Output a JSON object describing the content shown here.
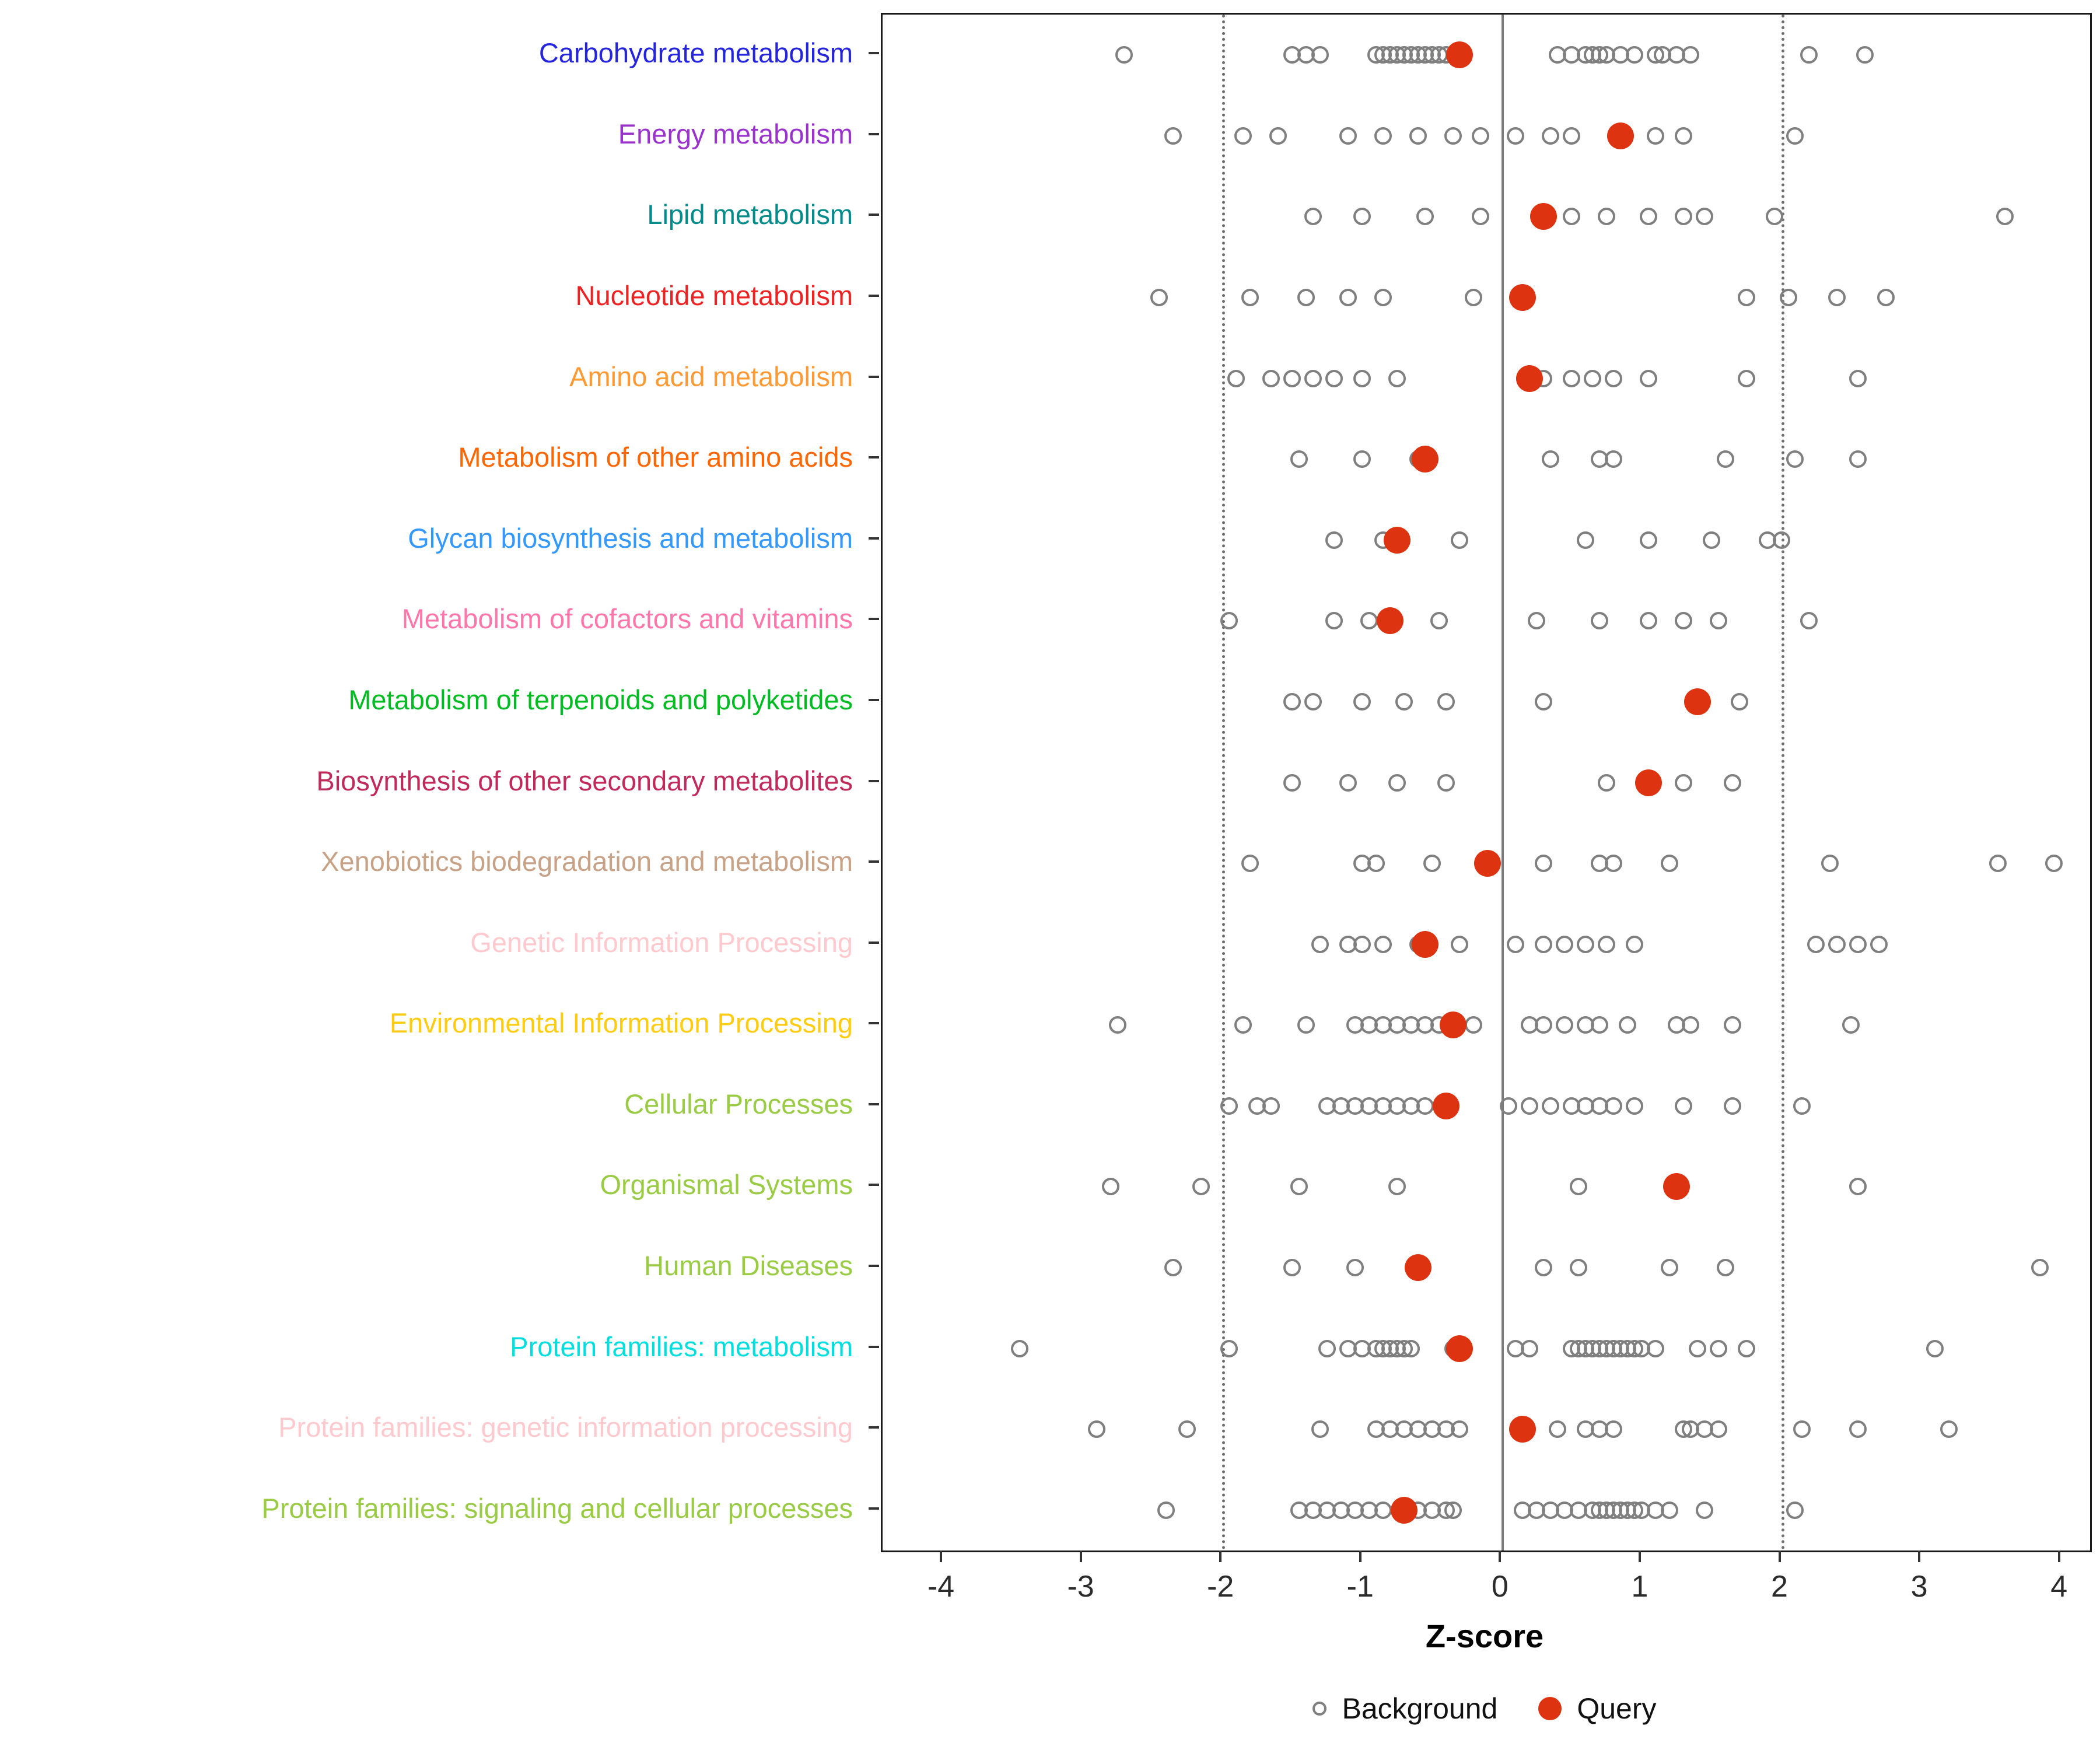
{
  "chart_data": {
    "type": "scatter",
    "title": "",
    "xlabel": "Z-score",
    "ylabel": "",
    "xlim": [
      -4.43,
      4.21
    ],
    "x_ticks": [
      -4,
      -3,
      -2,
      -1,
      0,
      1,
      2,
      3,
      4
    ],
    "ref_lines": {
      "solid": 0,
      "dotted": [
        -2,
        2
      ]
    },
    "legend": {
      "background_label": "Background",
      "query_label": "Query",
      "position": "bottom"
    },
    "colors": {
      "query": "#DD3311",
      "background_stroke": "#7F7F7F"
    },
    "categories": [
      {
        "label": "Carbohydrate metabolism",
        "color": "#2424DD",
        "query": -0.3,
        "background": [
          -2.7,
          -1.5,
          -1.4,
          -1.3,
          -0.9,
          -0.85,
          -0.8,
          -0.75,
          -0.7,
          -0.65,
          -0.6,
          -0.55,
          -0.5,
          -0.45,
          -0.4,
          0.4,
          0.5,
          0.6,
          0.65,
          0.7,
          0.75,
          0.85,
          0.95,
          1.1,
          1.15,
          1.25,
          1.35,
          2.2,
          2.6
        ]
      },
      {
        "label": "Energy metabolism",
        "color": "#9933CC",
        "query": 0.85,
        "background": [
          -2.35,
          -1.85,
          -1.6,
          -1.1,
          -0.85,
          -0.6,
          -0.35,
          -0.15,
          0.1,
          0.35,
          0.5,
          1.1,
          1.3,
          2.1
        ]
      },
      {
        "label": "Lipid metabolism",
        "color": "#008B8B",
        "query": 0.3,
        "background": [
          -1.35,
          -1.0,
          -0.55,
          -0.15,
          0.5,
          0.75,
          1.05,
          1.3,
          1.45,
          1.95,
          3.6
        ]
      },
      {
        "label": "Nucleotide metabolism",
        "color": "#EE2222",
        "query": 0.15,
        "background": [
          -2.45,
          -1.8,
          -1.4,
          -1.1,
          -0.85,
          -0.2,
          1.75,
          2.05,
          2.4,
          2.75
        ]
      },
      {
        "label": "Amino acid metabolism",
        "color": "#FF9933",
        "query": 0.2,
        "background": [
          -1.9,
          -1.65,
          -1.5,
          -1.35,
          -1.2,
          -1.0,
          -0.75,
          0.3,
          0.5,
          0.65,
          0.8,
          1.05,
          1.75,
          2.55
        ]
      },
      {
        "label": "Metabolism of other amino acids",
        "color": "#FF6600",
        "query": -0.55,
        "background": [
          -1.45,
          -1.0,
          -0.6,
          0.35,
          0.7,
          0.8,
          1.6,
          2.1,
          2.55
        ]
      },
      {
        "label": "Glycan biosynthesis and metabolism",
        "color": "#3399FF",
        "query": -0.75,
        "background": [
          -1.2,
          -0.85,
          -0.3,
          0.6,
          1.05,
          1.5,
          1.9,
          2.0
        ]
      },
      {
        "label": "Metabolism of cofactors and vitamins",
        "color": "#FF77AA",
        "query": -0.8,
        "background": [
          -1.95,
          -1.2,
          -0.95,
          -0.45,
          0.25,
          0.7,
          1.05,
          1.3,
          1.55,
          2.2
        ]
      },
      {
        "label": "Metabolism of terpenoids and polyketides",
        "color": "#00BB22",
        "query": 1.4,
        "background": [
          -1.5,
          -1.35,
          -1.0,
          -0.7,
          -0.4,
          0.3,
          1.7
        ]
      },
      {
        "label": "Biosynthesis of other secondary metabolites",
        "color": "#C02A5A",
        "query": 1.05,
        "background": [
          -1.5,
          -1.1,
          -0.75,
          -0.4,
          0.75,
          1.3,
          1.65
        ]
      },
      {
        "label": "Xenobiotics biodegradation and metabolism",
        "color": "#C8A287",
        "query": -0.1,
        "background": [
          -1.8,
          -1.0,
          -0.9,
          -0.5,
          0.3,
          0.7,
          0.8,
          1.2,
          2.35,
          3.55,
          3.95
        ]
      },
      {
        "label": "Genetic Information Processing",
        "color": "#FFC9CE",
        "query": -0.55,
        "background": [
          -1.3,
          -1.1,
          -1.0,
          -0.85,
          -0.6,
          -0.3,
          0.1,
          0.3,
          0.45,
          0.6,
          0.75,
          0.95,
          2.25,
          2.4,
          2.55,
          2.7
        ]
      },
      {
        "label": "Environmental Information Processing",
        "color": "#FFCC11",
        "query": -0.35,
        "background": [
          -2.75,
          -1.85,
          -1.4,
          -1.05,
          -0.95,
          -0.85,
          -0.75,
          -0.65,
          -0.55,
          -0.45,
          -0.2,
          0.2,
          0.3,
          0.45,
          0.6,
          0.7,
          0.9,
          1.25,
          1.35,
          1.65,
          2.5
        ]
      },
      {
        "label": "Cellular Processes",
        "color": "#99CC44",
        "query": -0.4,
        "background": [
          -1.95,
          -1.75,
          -1.65,
          -1.25,
          -1.15,
          -1.05,
          -0.95,
          -0.85,
          -0.75,
          -0.65,
          -0.55,
          0.05,
          0.2,
          0.35,
          0.5,
          0.6,
          0.7,
          0.8,
          0.95,
          1.3,
          1.65,
          2.15
        ]
      },
      {
        "label": "Organismal Systems",
        "color": "#99CC44",
        "query": 1.25,
        "background": [
          -2.8,
          -2.15,
          -1.45,
          -0.75,
          0.55,
          2.55
        ]
      },
      {
        "label": "Human Diseases",
        "color": "#99CC44",
        "query": -0.6,
        "background": [
          -2.35,
          -1.5,
          -1.05,
          0.3,
          0.55,
          1.2,
          1.6,
          3.85
        ]
      },
      {
        "label": "Protein families: metabolism",
        "color": "#00DDDD",
        "query": -0.3,
        "background": [
          -3.45,
          -1.95,
          -1.25,
          -1.1,
          -1.0,
          -0.9,
          -0.85,
          -0.8,
          -0.75,
          -0.7,
          -0.65,
          -0.35,
          0.1,
          0.2,
          0.5,
          0.55,
          0.6,
          0.65,
          0.7,
          0.75,
          0.8,
          0.85,
          0.9,
          0.95,
          1.0,
          1.1,
          1.4,
          1.55,
          1.75,
          3.1
        ]
      },
      {
        "label": "Protein families: genetic information processing",
        "color": "#FFC9CE",
        "query": 0.15,
        "background": [
          -2.9,
          -2.25,
          -1.3,
          -0.9,
          -0.8,
          -0.7,
          -0.6,
          -0.5,
          -0.4,
          -0.3,
          0.4,
          0.6,
          0.7,
          0.8,
          1.3,
          1.35,
          1.45,
          1.55,
          2.15,
          2.55,
          3.2
        ]
      },
      {
        "label": "Protein families: signaling and cellular processes",
        "color": "#99CC44",
        "query": -0.7,
        "background": [
          -2.4,
          -1.45,
          -1.35,
          -1.25,
          -1.15,
          -1.05,
          -0.95,
          -0.85,
          -0.6,
          -0.5,
          -0.4,
          -0.35,
          0.15,
          0.25,
          0.35,
          0.45,
          0.55,
          0.65,
          0.7,
          0.75,
          0.8,
          0.85,
          0.9,
          0.95,
          1.0,
          1.1,
          1.2,
          1.45,
          2.1
        ]
      }
    ]
  }
}
